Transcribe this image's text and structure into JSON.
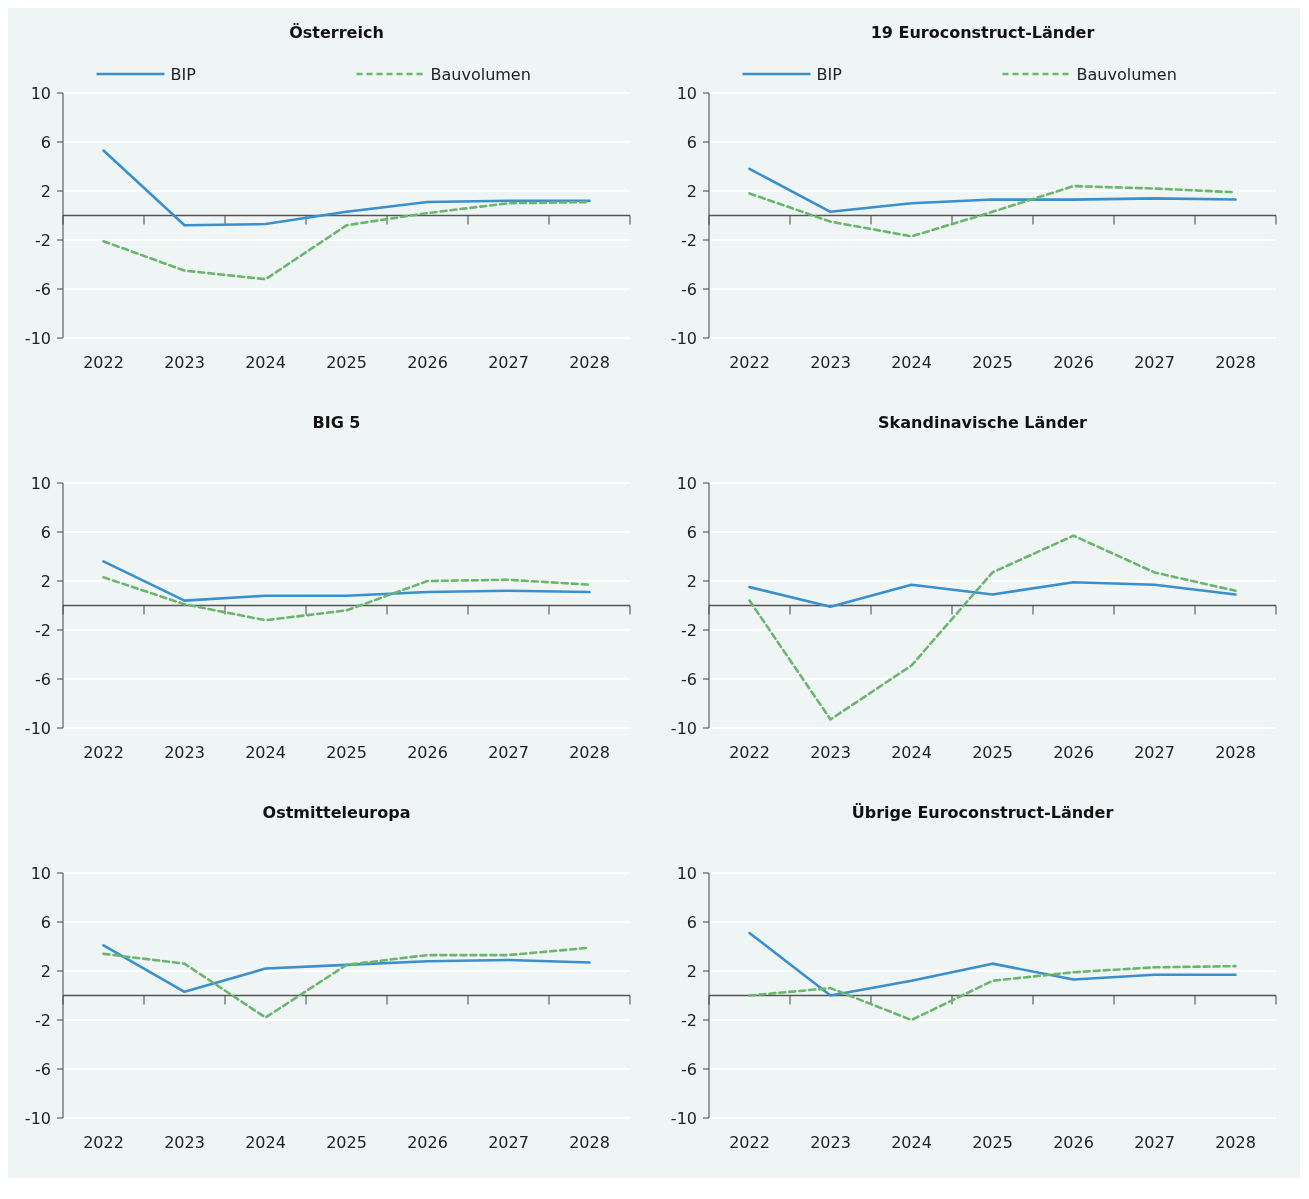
{
  "chart_data": [
    {
      "type": "line",
      "title": "Österreich",
      "categories": [
        "2022",
        "2023",
        "2024",
        "2025",
        "2026",
        "2027",
        "2028"
      ],
      "ylim": [
        -10,
        10
      ],
      "yticks": [
        -10,
        -6,
        -2,
        2,
        6,
        10
      ],
      "grid": "y",
      "legend": "top",
      "series": [
        {
          "name": "BIP",
          "color": "#3a8fcd",
          "line_style": "solid",
          "values": [
            5.3,
            -0.8,
            -0.7,
            0.3,
            1.1,
            1.2,
            1.2
          ]
        },
        {
          "name": "Bauvolumen",
          "color": "#6cb56f",
          "line_style": "dashed",
          "values": [
            -2.1,
            -4.5,
            -5.2,
            -0.8,
            0.2,
            1.0,
            1.1
          ]
        }
      ]
    },
    {
      "type": "line",
      "title": "19 Euroconstruct-Länder",
      "categories": [
        "2022",
        "2023",
        "2024",
        "2025",
        "2026",
        "2027",
        "2028"
      ],
      "ylim": [
        -10,
        10
      ],
      "yticks": [
        -10,
        -6,
        -2,
        2,
        6,
        10
      ],
      "grid": "y",
      "legend": "top",
      "series": [
        {
          "name": "BIP",
          "color": "#3a8fcd",
          "line_style": "solid",
          "values": [
            3.8,
            0.3,
            1.0,
            1.3,
            1.3,
            1.4,
            1.3
          ]
        },
        {
          "name": "Bauvolumen",
          "color": "#6cb56f",
          "line_style": "dashed",
          "values": [
            1.8,
            -0.5,
            -1.7,
            0.3,
            2.4,
            2.2,
            1.9
          ]
        }
      ]
    },
    {
      "type": "line",
      "title": "BIG 5",
      "categories": [
        "2022",
        "2023",
        "2024",
        "2025",
        "2026",
        "2027",
        "2028"
      ],
      "ylim": [
        -10,
        10
      ],
      "yticks": [
        -10,
        -6,
        -2,
        2,
        6,
        10
      ],
      "grid": "y",
      "series": [
        {
          "color": "#3a8fcd",
          "line_style": "solid",
          "values": [
            3.6,
            0.4,
            0.8,
            0.8,
            1.1,
            1.2,
            1.1
          ]
        },
        {
          "color": "#6cb56f",
          "line_style": "dashed",
          "values": [
            2.3,
            0.1,
            -1.2,
            -0.4,
            2.0,
            2.1,
            1.7
          ]
        }
      ]
    },
    {
      "type": "line",
      "title": "Skandinavische Länder",
      "categories": [
        "2022",
        "2023",
        "2024",
        "2025",
        "2026",
        "2027",
        "2028"
      ],
      "ylim": [
        -10,
        10
      ],
      "yticks": [
        -10,
        -6,
        -2,
        2,
        6,
        10
      ],
      "grid": "y",
      "series": [
        {
          "color": "#3a8fcd",
          "line_style": "solid",
          "values": [
            1.5,
            -0.1,
            1.7,
            0.9,
            1.9,
            1.7,
            0.9
          ]
        },
        {
          "color": "#6cb56f",
          "line_style": "dashed",
          "values": [
            0.4,
            -9.3,
            -4.9,
            2.7,
            5.7,
            2.7,
            1.2
          ]
        }
      ]
    },
    {
      "type": "line",
      "title": "Ostmitteleuropa",
      "categories": [
        "2022",
        "2023",
        "2024",
        "2025",
        "2026",
        "2027",
        "2028"
      ],
      "ylim": [
        -10,
        10
      ],
      "yticks": [
        -10,
        -6,
        -2,
        2,
        6,
        10
      ],
      "grid": "y",
      "series": [
        {
          "color": "#3a8fcd",
          "line_style": "solid",
          "values": [
            4.1,
            0.3,
            2.2,
            2.5,
            2.8,
            2.9,
            2.7
          ]
        },
        {
          "color": "#6cb56f",
          "line_style": "dashed",
          "values": [
            3.4,
            2.6,
            -1.8,
            2.5,
            3.3,
            3.3,
            3.9
          ]
        }
      ]
    },
    {
      "type": "line",
      "title": "Übrige Euroconstruct-Länder",
      "categories": [
        "2022",
        "2023",
        "2024",
        "2025",
        "2026",
        "2027",
        "2028"
      ],
      "ylim": [
        -10,
        10
      ],
      "yticks": [
        -10,
        -6,
        -2,
        2,
        6,
        10
      ],
      "grid": "y",
      "series": [
        {
          "color": "#3a8fcd",
          "line_style": "solid",
          "values": [
            5.1,
            0.0,
            1.2,
            2.6,
            1.3,
            1.7,
            1.7
          ]
        },
        {
          "color": "#6cb56f",
          "line_style": "dashed",
          "values": [
            0.0,
            0.6,
            -2.0,
            1.2,
            1.9,
            2.3,
            2.4
          ]
        }
      ]
    }
  ]
}
